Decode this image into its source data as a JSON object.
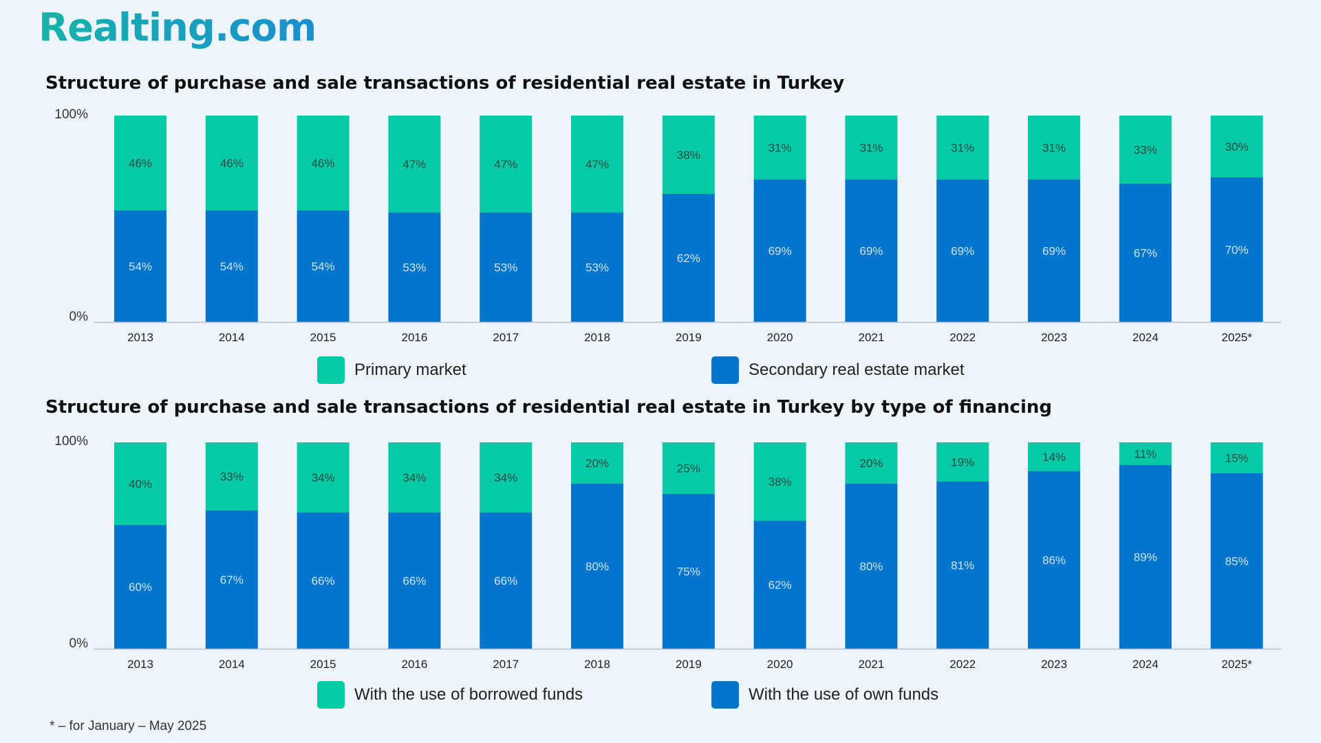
{
  "brand": {
    "logo_text": "Realting.com"
  },
  "colors": {
    "primary": "#06c9a5",
    "secondary": "#0475cc",
    "background": "#edf4fc"
  },
  "footnote": "* – for January – May 2025",
  "chart_data": [
    {
      "type": "bar",
      "stacked": true,
      "title": "Structure of purchase and sale transactions of residential real estate in Turkey",
      "categories": [
        "2013",
        "2014",
        "2015",
        "2016",
        "2017",
        "2018",
        "2019",
        "2020",
        "2021",
        "2022",
        "2023",
        "2024",
        "2025*"
      ],
      "series": [
        {
          "name": "Secondary real estate market",
          "color": "#0475cc",
          "values": [
            54,
            54,
            54,
            53,
            53,
            53,
            62,
            69,
            69,
            69,
            69,
            67,
            70
          ]
        },
        {
          "name": "Primary market",
          "color": "#06c9a5",
          "values": [
            46,
            46,
            46,
            47,
            47,
            47,
            38,
            31,
            31,
            31,
            31,
            33,
            30
          ]
        }
      ],
      "value_suffix": "%",
      "y_tick_labels": [
        "0%",
        "100%"
      ],
      "ylim": [
        0,
        100
      ],
      "legend": [
        {
          "label": "Primary market",
          "color": "#06c9a5"
        },
        {
          "label": "Secondary real estate market",
          "color": "#0475cc"
        }
      ],
      "legend_position": "bottom"
    },
    {
      "type": "bar",
      "stacked": true,
      "title": "Structure of purchase and sale transactions of residential real estate in Turkey by type of financing",
      "categories": [
        "2013",
        "2014",
        "2015",
        "2016",
        "2017",
        "2018",
        "2019",
        "2020",
        "2021",
        "2022",
        "2023",
        "2024",
        "2025*"
      ],
      "series": [
        {
          "name": "With the use of own funds",
          "color": "#0475cc",
          "values": [
            60,
            67,
            66,
            66,
            66,
            80,
            75,
            62,
            80,
            81,
            86,
            89,
            85
          ]
        },
        {
          "name": "With the use of borrowed funds",
          "color": "#06c9a5",
          "values": [
            40,
            33,
            34,
            34,
            34,
            20,
            25,
            38,
            20,
            19,
            14,
            11,
            15
          ]
        }
      ],
      "value_suffix": "%",
      "y_tick_labels": [
        "0%",
        "100%"
      ],
      "ylim": [
        0,
        100
      ],
      "legend": [
        {
          "label": "With the use of borrowed funds",
          "color": "#06c9a5"
        },
        {
          "label": "With the use of own funds",
          "color": "#0475cc"
        }
      ],
      "legend_position": "bottom"
    }
  ]
}
